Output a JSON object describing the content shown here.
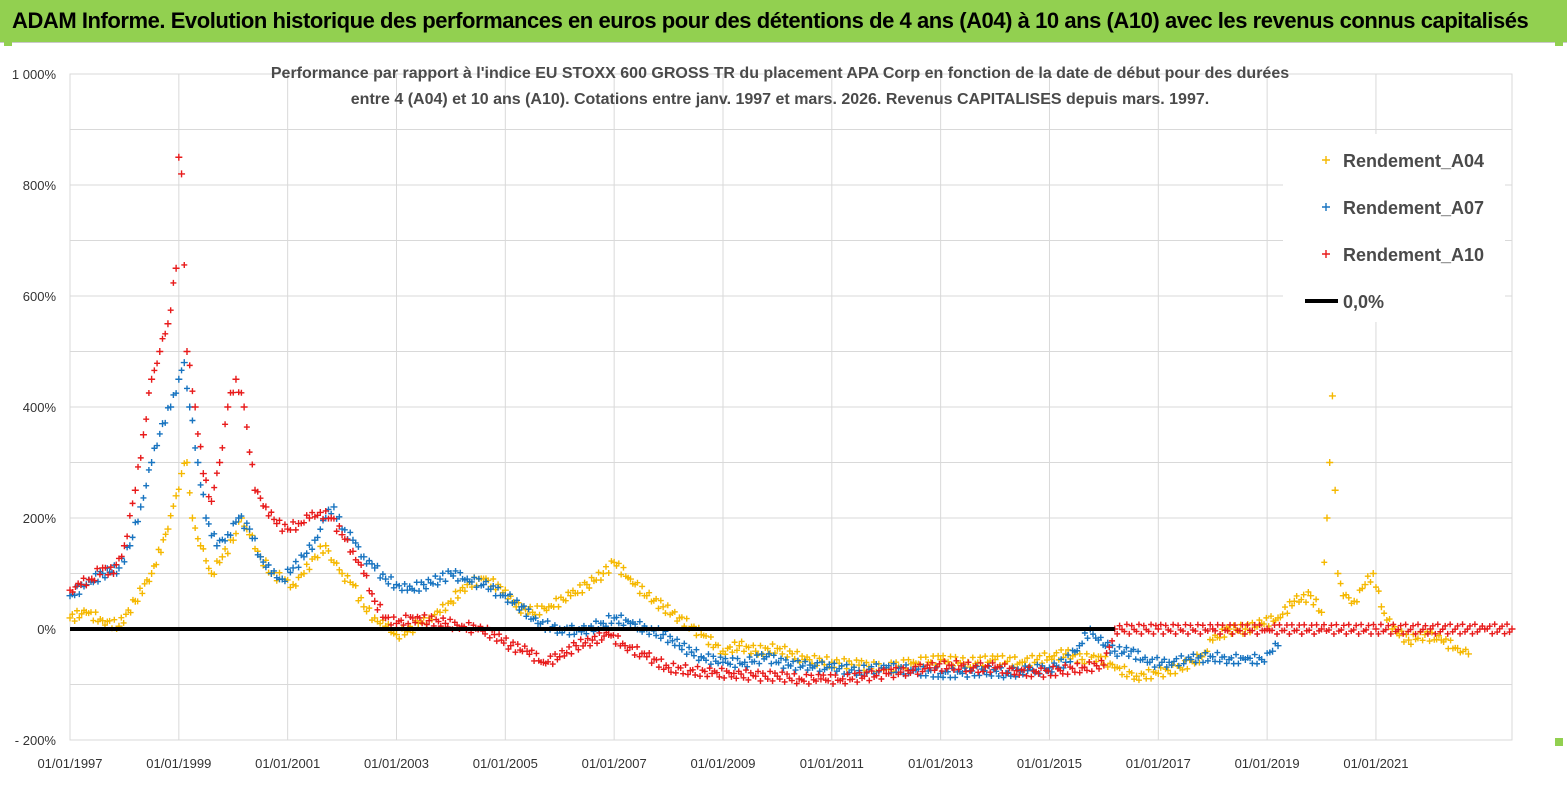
{
  "banner": {
    "title": "ADAM Informe. Evolution historique des performances en euros pour des détentions de 4 ans (A04) à 10 ans (A10) avec les revenus connus capitalisés",
    "color": "#92d050"
  },
  "chart_data": {
    "type": "scatter",
    "title_line1": "Performance par rapport à l'indice EU STOXX 600 GROSS TR  du placement APA Corp en fonction de la date de début pour des durées",
    "title_line2": "entre 4 (A04) et 10 ans (A10). Cotations entre janv. 1997 et mars. 2026. Revenus CAPITALISES depuis mars. 1997.",
    "xlim": [
      1997.0,
      2023.5
    ],
    "ylim": [
      -200,
      1000
    ],
    "x_ticks": [
      1997,
      1999,
      2001,
      2003,
      2005,
      2007,
      2009,
      2011,
      2013,
      2015,
      2017,
      2019,
      2021
    ],
    "x_tick_labels": [
      "01/01/1997",
      "01/01/1999",
      "01/01/2001",
      "01/01/2003",
      "01/01/2005",
      "01/01/2007",
      "01/01/2009",
      "01/01/2011",
      "01/01/2013",
      "01/01/2015",
      "01/01/2017",
      "01/01/2019",
      "01/01/2021"
    ],
    "y_ticks": [
      -200,
      0,
      200,
      400,
      600,
      800,
      1000
    ],
    "y_tick_labels": [
      "- 200%",
      "0%",
      "200%",
      "400%",
      "600%",
      "800%",
      "1 000%"
    ],
    "grid": true,
    "legend_position": "top-right",
    "series": [
      {
        "name": "Rendement_A04",
        "color": "#f5b800",
        "points": [
          [
            1997.0,
            20
          ],
          [
            1997.3,
            30
          ],
          [
            1997.6,
            15
          ],
          [
            1997.9,
            5
          ],
          [
            1998.2,
            50
          ],
          [
            1998.5,
            100
          ],
          [
            1998.8,
            180
          ],
          [
            1998.95,
            240
          ],
          [
            1999.05,
            280
          ],
          [
            1999.15,
            300
          ],
          [
            1999.25,
            200
          ],
          [
            1999.4,
            150
          ],
          [
            1999.6,
            100
          ],
          [
            1999.8,
            130
          ],
          [
            2000.0,
            160
          ],
          [
            2000.15,
            200
          ],
          [
            2000.3,
            170
          ],
          [
            2000.5,
            130
          ],
          [
            2000.7,
            100
          ],
          [
            2000.9,
            90
          ],
          [
            2001.1,
            80
          ],
          [
            2001.3,
            100
          ],
          [
            2001.5,
            130
          ],
          [
            2001.7,
            150
          ],
          [
            2001.85,
            120
          ],
          [
            2002.0,
            100
          ],
          [
            2002.2,
            80
          ],
          [
            2002.4,
            40
          ],
          [
            2002.6,
            20
          ],
          [
            2002.8,
            5
          ],
          [
            2003.0,
            -10
          ],
          [
            2003.2,
            -5
          ],
          [
            2003.4,
            10
          ],
          [
            2003.6,
            20
          ],
          [
            2003.8,
            30
          ],
          [
            2004.0,
            50
          ],
          [
            2004.3,
            80
          ],
          [
            2004.6,
            90
          ],
          [
            2005.0,
            70
          ],
          [
            2005.2,
            40
          ],
          [
            2005.5,
            30
          ],
          [
            2005.8,
            40
          ],
          [
            2006.2,
            60
          ],
          [
            2006.5,
            80
          ],
          [
            2006.8,
            100
          ],
          [
            2007.0,
            120
          ],
          [
            2007.3,
            90
          ],
          [
            2007.6,
            60
          ],
          [
            2007.9,
            40
          ],
          [
            2008.2,
            20
          ],
          [
            2008.6,
            -10
          ],
          [
            2009.0,
            -40
          ],
          [
            2009.3,
            -30
          ],
          [
            2009.6,
            -40
          ],
          [
            2010.0,
            -35
          ],
          [
            2010.5,
            -55
          ],
          [
            2011.0,
            -60
          ],
          [
            2011.5,
            -65
          ],
          [
            2012.0,
            -70
          ],
          [
            2012.5,
            -60
          ],
          [
            2013.0,
            -55
          ],
          [
            2013.5,
            -60
          ],
          [
            2014.0,
            -55
          ],
          [
            2014.5,
            -60
          ],
          [
            2015.0,
            -50
          ],
          [
            2015.3,
            -45
          ],
          [
            2015.6,
            -55
          ],
          [
            2015.9,
            -50
          ],
          [
            2016.2,
            -70
          ],
          [
            2016.6,
            -85
          ],
          [
            2017.0,
            -80
          ],
          [
            2017.4,
            -70
          ],
          [
            2017.8,
            -50
          ],
          [
            2018.0,
            -20
          ],
          [
            2018.3,
            0
          ],
          [
            2018.6,
            0
          ],
          [
            2018.9,
            10
          ],
          [
            2019.2,
            20
          ],
          [
            2019.5,
            50
          ],
          [
            2019.8,
            60
          ],
          [
            2020.0,
            30
          ],
          [
            2020.1,
            200
          ],
          [
            2020.15,
            300
          ],
          [
            2020.2,
            420
          ],
          [
            2020.25,
            250
          ],
          [
            2020.3,
            100
          ],
          [
            2020.4,
            60
          ],
          [
            2020.6,
            50
          ],
          [
            2020.8,
            80
          ],
          [
            2020.95,
            100
          ],
          [
            2021.1,
            40
          ],
          [
            2021.3,
            0
          ],
          [
            2021.6,
            -20
          ],
          [
            2021.9,
            -10
          ],
          [
            2022.2,
            -20
          ],
          [
            2022.5,
            -35
          ],
          [
            2022.7,
            -45
          ]
        ]
      },
      {
        "name": "Rendement_A07",
        "color": "#1874c0",
        "points": [
          [
            1997.0,
            60
          ],
          [
            1997.3,
            80
          ],
          [
            1997.6,
            100
          ],
          [
            1997.9,
            110
          ],
          [
            1998.1,
            150
          ],
          [
            1998.3,
            220
          ],
          [
            1998.5,
            300
          ],
          [
            1998.7,
            370
          ],
          [
            1998.85,
            400
          ],
          [
            1999.0,
            450
          ],
          [
            1999.1,
            480
          ],
          [
            1999.2,
            400
          ],
          [
            1999.35,
            300
          ],
          [
            1999.5,
            200
          ],
          [
            1999.7,
            150
          ],
          [
            1999.9,
            170
          ],
          [
            2000.1,
            200
          ],
          [
            2000.3,
            180
          ],
          [
            2000.5,
            130
          ],
          [
            2000.7,
            100
          ],
          [
            2000.9,
            90
          ],
          [
            2001.1,
            110
          ],
          [
            2001.3,
            130
          ],
          [
            2001.5,
            160
          ],
          [
            2001.7,
            200
          ],
          [
            2001.85,
            220
          ],
          [
            2002.0,
            180
          ],
          [
            2002.2,
            160
          ],
          [
            2002.4,
            130
          ],
          [
            2002.6,
            110
          ],
          [
            2002.8,
            90
          ],
          [
            2003.0,
            80
          ],
          [
            2003.2,
            70
          ],
          [
            2003.5,
            80
          ],
          [
            2003.8,
            90
          ],
          [
            2004.0,
            100
          ],
          [
            2004.3,
            90
          ],
          [
            2004.6,
            80
          ],
          [
            2005.0,
            60
          ],
          [
            2005.3,
            40
          ],
          [
            2005.6,
            10
          ],
          [
            2006.0,
            0
          ],
          [
            2006.4,
            -5
          ],
          [
            2006.8,
            10
          ],
          [
            2007.0,
            20
          ],
          [
            2007.3,
            10
          ],
          [
            2007.6,
            0
          ],
          [
            2007.9,
            -10
          ],
          [
            2008.2,
            -30
          ],
          [
            2008.6,
            -50
          ],
          [
            2009.0,
            -60
          ],
          [
            2009.4,
            -60
          ],
          [
            2009.8,
            -50
          ],
          [
            2010.2,
            -65
          ],
          [
            2010.6,
            -65
          ],
          [
            2011.0,
            -70
          ],
          [
            2011.5,
            -75
          ],
          [
            2012.0,
            -70
          ],
          [
            2012.5,
            -75
          ],
          [
            2013.0,
            -80
          ],
          [
            2013.4,
            -80
          ],
          [
            2013.8,
            -75
          ],
          [
            2014.2,
            -80
          ],
          [
            2014.6,
            -75
          ],
          [
            2015.0,
            -70
          ],
          [
            2015.3,
            -60
          ],
          [
            2015.55,
            -30
          ],
          [
            2015.75,
            0
          ],
          [
            2015.9,
            -20
          ],
          [
            2016.2,
            -40
          ],
          [
            2016.5,
            -40
          ],
          [
            2016.8,
            -60
          ],
          [
            2017.2,
            -60
          ],
          [
            2017.6,
            -55
          ],
          [
            2018.0,
            -50
          ],
          [
            2018.3,
            -55
          ],
          [
            2018.6,
            -55
          ],
          [
            2018.9,
            -55
          ],
          [
            2019.1,
            -40
          ],
          [
            2019.2,
            -30
          ]
        ]
      },
      {
        "name": "Rendement_A10",
        "color": "#e81b1b",
        "points": [
          [
            1997.0,
            70
          ],
          [
            1997.2,
            80
          ],
          [
            1997.4,
            90
          ],
          [
            1997.6,
            110
          ],
          [
            1997.8,
            100
          ],
          [
            1998.0,
            150
          ],
          [
            1998.2,
            250
          ],
          [
            1998.35,
            350
          ],
          [
            1998.5,
            450
          ],
          [
            1998.65,
            500
          ],
          [
            1998.8,
            550
          ],
          [
            1998.95,
            650
          ],
          [
            1999.0,
            850
          ],
          [
            1999.05,
            820
          ],
          [
            1999.15,
            500
          ],
          [
            1999.3,
            400
          ],
          [
            1999.45,
            280
          ],
          [
            1999.6,
            230
          ],
          [
            1999.75,
            300
          ],
          [
            1999.9,
            400
          ],
          [
            2000.05,
            450
          ],
          [
            2000.2,
            400
          ],
          [
            2000.4,
            250
          ],
          [
            2000.6,
            220
          ],
          [
            2000.8,
            190
          ],
          [
            2001.0,
            180
          ],
          [
            2001.2,
            190
          ],
          [
            2001.4,
            200
          ],
          [
            2001.6,
            210
          ],
          [
            2001.8,
            200
          ],
          [
            2002.0,
            170
          ],
          [
            2002.2,
            140
          ],
          [
            2002.4,
            100
          ],
          [
            2002.6,
            50
          ],
          [
            2002.8,
            20
          ],
          [
            2003.0,
            10
          ],
          [
            2003.3,
            20
          ],
          [
            2003.6,
            15
          ],
          [
            2003.9,
            10
          ],
          [
            2004.2,
            5
          ],
          [
            2004.5,
            0
          ],
          [
            2004.8,
            -10
          ],
          [
            2005.1,
            -30
          ],
          [
            2005.4,
            -40
          ],
          [
            2005.7,
            -60
          ],
          [
            2006.0,
            -50
          ],
          [
            2006.3,
            -30
          ],
          [
            2006.6,
            -20
          ],
          [
            2006.9,
            -10
          ],
          [
            2007.2,
            -30
          ],
          [
            2007.6,
            -50
          ],
          [
            2008.0,
            -70
          ],
          [
            2008.4,
            -75
          ],
          [
            2008.8,
            -80
          ],
          [
            2009.2,
            -80
          ],
          [
            2009.6,
            -85
          ],
          [
            2010.0,
            -85
          ],
          [
            2010.4,
            -90
          ],
          [
            2010.8,
            -90
          ],
          [
            2011.2,
            -90
          ],
          [
            2011.6,
            -85
          ],
          [
            2012.0,
            -80
          ],
          [
            2012.4,
            -75
          ],
          [
            2012.8,
            -70
          ],
          [
            2013.2,
            -65
          ],
          [
            2013.6,
            -70
          ],
          [
            2014.0,
            -70
          ],
          [
            2014.4,
            -75
          ],
          [
            2014.8,
            -80
          ],
          [
            2015.2,
            -75
          ],
          [
            2015.6,
            -70
          ],
          [
            2016.0,
            -65
          ],
          [
            2016.2,
            0
          ],
          [
            2017.0,
            0
          ],
          [
            2018.0,
            0
          ],
          [
            2019.0,
            0
          ],
          [
            2020.0,
            0
          ],
          [
            2021.0,
            0
          ],
          [
            2022.0,
            0
          ],
          [
            2023.0,
            0
          ],
          [
            2023.5,
            0
          ]
        ]
      },
      {
        "name": "0,0%",
        "color": "#000000",
        "kind": "line",
        "points": [
          [
            1997.0,
            0
          ],
          [
            2016.2,
            0
          ]
        ]
      }
    ]
  }
}
